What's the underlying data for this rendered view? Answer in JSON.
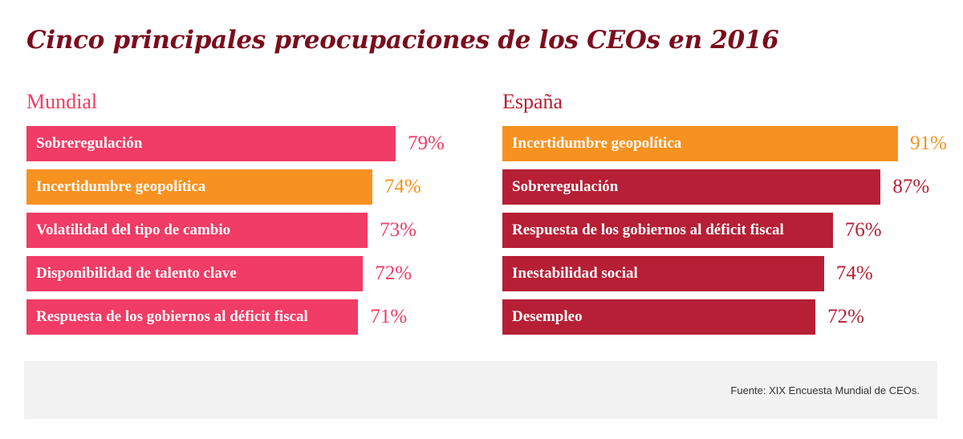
{
  "title": "Cinco principales preocupaciones de los CEOs en 2016",
  "colors": {
    "title": "#7a0d1e",
    "pink": "#f03c66",
    "orange": "#f79220",
    "dark_red": "#b61f35"
  },
  "chart_data": [
    {
      "type": "bar",
      "orientation": "horizontal",
      "title": "Mundial",
      "title_color": "#f03c66",
      "categories": [
        "Sobreregulación",
        "Incertidumbre geopolítica",
        "Volatilidad del tipo de cambio",
        "Disponibilidad de talento clave",
        "Respuesta de los gobiernos al déficit fiscal"
      ],
      "values": [
        79,
        74,
        73,
        72,
        71
      ],
      "value_labels": [
        "79%",
        "74%",
        "73%",
        "72%",
        "71%"
      ],
      "bar_colors": [
        "#f03c66",
        "#f79220",
        "#f03c66",
        "#f03c66",
        "#f03c66"
      ],
      "grid": false
    },
    {
      "type": "bar",
      "orientation": "horizontal",
      "title": "España",
      "title_color": "#b61f35",
      "categories": [
        "Incertidumbre geopolítica",
        "Sobreregulación",
        "Respuesta de los gobiernos al déficit fiscal",
        "Inestabilidad social",
        "Desempleo"
      ],
      "values": [
        91,
        87,
        76,
        74,
        72
      ],
      "value_labels": [
        "91%",
        "87%",
        "76%",
        "74%",
        "72%"
      ],
      "bar_colors": [
        "#f79220",
        "#b61f35",
        "#b61f35",
        "#b61f35",
        "#b61f35"
      ],
      "grid": false
    }
  ],
  "footer": {
    "source": "Fuente: XIX Encuesta Mundial de CEOs."
  }
}
